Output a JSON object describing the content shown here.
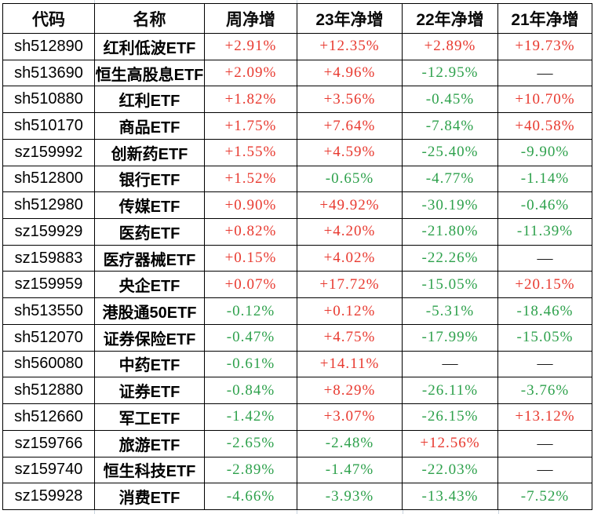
{
  "table": {
    "columns": [
      {
        "key": "code",
        "label": "代码"
      },
      {
        "key": "name",
        "label": "名称"
      },
      {
        "key": "week",
        "label": "周净增"
      },
      {
        "key": "y23",
        "label": "23年净增"
      },
      {
        "key": "y22",
        "label": "22年净增"
      },
      {
        "key": "y21",
        "label": "21年净增"
      }
    ],
    "rows": [
      {
        "code": "sh512890",
        "name": "红利低波ETF",
        "week": "+2.91%",
        "y23": "+12.35%",
        "y22": "+2.89%",
        "y21": "+19.73%"
      },
      {
        "code": "sh513690",
        "name": "恒生高股息ETF",
        "week": "+2.09%",
        "y23": "+4.96%",
        "y22": "-12.95%",
        "y21": "—"
      },
      {
        "code": "sh510880",
        "name": "红利ETF",
        "week": "+1.82%",
        "y23": "+3.56%",
        "y22": "-0.45%",
        "y21": "+10.70%"
      },
      {
        "code": "sh510170",
        "name": "商品ETF",
        "week": "+1.75%",
        "y23": "+7.64%",
        "y22": "-7.84%",
        "y21": "+40.58%"
      },
      {
        "code": "sz159992",
        "name": "创新药ETF",
        "week": "+1.55%",
        "y23": "+4.59%",
        "y22": "-25.40%",
        "y21": "-9.90%"
      },
      {
        "code": "sh512800",
        "name": "银行ETF",
        "week": "+1.52%",
        "y23": "-0.65%",
        "y22": "-4.77%",
        "y21": "-1.14%"
      },
      {
        "code": "sh512980",
        "name": "传媒ETF",
        "week": "+0.90%",
        "y23": "+49.92%",
        "y22": "-30.19%",
        "y21": "-0.46%"
      },
      {
        "code": "sz159929",
        "name": "医药ETF",
        "week": "+0.82%",
        "y23": "+4.20%",
        "y22": "-21.80%",
        "y21": "-11.39%"
      },
      {
        "code": "sz159883",
        "name": "医疗器械ETF",
        "week": "+0.15%",
        "y23": "+4.02%",
        "y22": "-22.26%",
        "y21": "—"
      },
      {
        "code": "sz159959",
        "name": "央企ETF",
        "week": "+0.07%",
        "y23": "+17.72%",
        "y22": "-15.05%",
        "y21": "+20.15%"
      },
      {
        "code": "sh513550",
        "name": "港股通50ETF",
        "week": "-0.12%",
        "y23": "+0.12%",
        "y22": "-5.31%",
        "y21": "-18.46%"
      },
      {
        "code": "sh512070",
        "name": "证券保险ETF",
        "week": "-0.47%",
        "y23": "+4.75%",
        "y22": "-17.99%",
        "y21": "-15.05%"
      },
      {
        "code": "sh560080",
        "name": "中药ETF",
        "week": "-0.61%",
        "y23": "+14.11%",
        "y22": "—",
        "y21": "—"
      },
      {
        "code": "sh512880",
        "name": "证券ETF",
        "week": "-0.84%",
        "y23": "+8.29%",
        "y22": "-26.11%",
        "y21": "-3.76%"
      },
      {
        "code": "sh512660",
        "name": "军工ETF",
        "week": "-1.42%",
        "y23": "+3.07%",
        "y22": "-26.15%",
        "y21": "+13.12%"
      },
      {
        "code": "sz159766",
        "name": "旅游ETF",
        "week": "-2.65%",
        "y23": "-2.48%",
        "y22": "+12.56%",
        "y21": "—"
      },
      {
        "code": "sz159740",
        "name": "恒生科技ETF",
        "week": "-2.89%",
        "y23": "-1.47%",
        "y22": "-22.03%",
        "y21": "—"
      },
      {
        "code": "sz159928",
        "name": "消费ETF",
        "week": "-4.66%",
        "y23": "-3.93%",
        "y22": "-13.43%",
        "y21": "-7.52%"
      }
    ],
    "empty_placeholder": "—"
  },
  "colors": {
    "positive": "#e8392f",
    "negative": "#2ea14c",
    "neutral": "#1a1a1a",
    "border": "#000000",
    "gridline": "#c9d4de"
  }
}
